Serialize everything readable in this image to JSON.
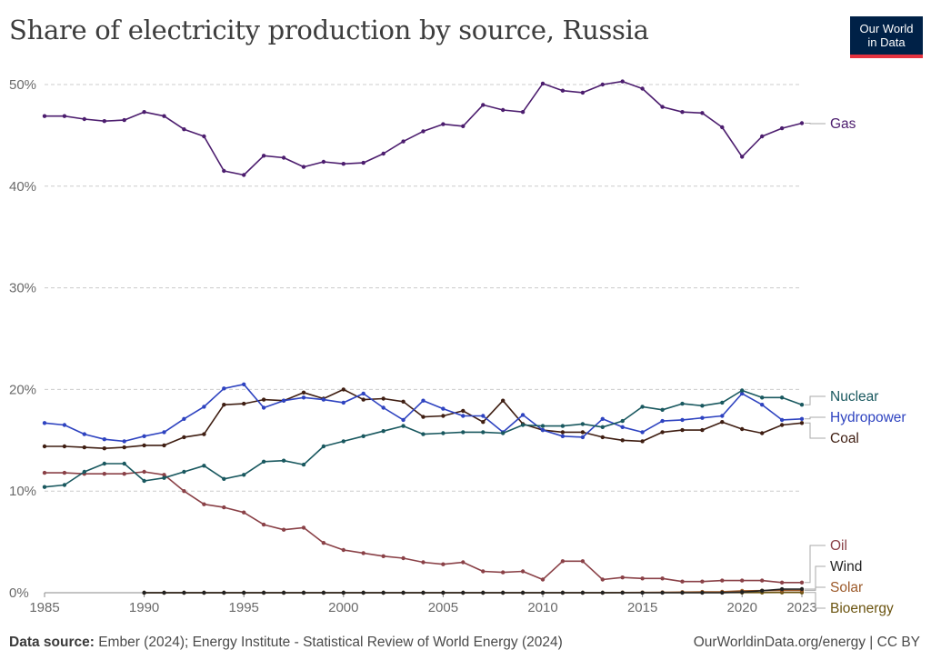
{
  "title": "Share of electricity production by source, Russia",
  "logo": {
    "line1": "Our World",
    "line2": "in Data"
  },
  "footer": {
    "source_label": "Data source:",
    "source_text": "Ember (2024); Energy Institute - Statistical Review of World Energy (2024)",
    "credit": "OurWorldinData.org/energy | CC BY"
  },
  "colors": {
    "gas": "#4c1d6e",
    "nuclear": "#19585f",
    "hydropower": "#2e43c0",
    "coal": "#3f1e12",
    "oil": "#8a4147",
    "wind": "#222222",
    "solar": "#9c5a2a",
    "bioenergy": "#6b5410",
    "grid": "#cccccc",
    "tick": "#6a6a6a"
  },
  "chart_data": {
    "type": "line",
    "title": "Share of electricity production by source, Russia",
    "xlim": [
      1985,
      2023
    ],
    "ylim": [
      0,
      50
    ],
    "y_ticks": [
      0,
      10,
      20,
      30,
      40,
      50
    ],
    "y_tick_labels": [
      "0%",
      "10%",
      "20%",
      "30%",
      "40%",
      "50%"
    ],
    "x_ticks": [
      1985,
      1990,
      1995,
      2000,
      2005,
      2010,
      2015,
      2020,
      2023
    ],
    "x_tick_labels": [
      "1985",
      "1990",
      "1995",
      "2000",
      "2005",
      "2010",
      "2015",
      "2020",
      "2023"
    ],
    "grid": "horizontal dashed",
    "legend": "right end labels",
    "series": [
      {
        "name": "Gas",
        "key": "gas",
        "start": 1985,
        "values": [
          46.9,
          46.9,
          46.6,
          46.4,
          46.5,
          47.3,
          46.9,
          45.6,
          44.9,
          41.5,
          41.1,
          43.0,
          42.8,
          41.9,
          42.4,
          42.2,
          42.3,
          43.2,
          44.4,
          45.4,
          46.1,
          45.9,
          48.0,
          47.5,
          47.3,
          50.1,
          49.4,
          49.2,
          50.0,
          50.3,
          49.6,
          47.8,
          47.3,
          47.2,
          45.8,
          42.9,
          44.9,
          45.7,
          46.2
        ]
      },
      {
        "name": "Nuclear",
        "key": "nuclear",
        "start": 1985,
        "values": [
          10.4,
          10.6,
          11.9,
          12.7,
          12.7,
          11.0,
          11.3,
          11.9,
          12.5,
          11.2,
          11.6,
          12.9,
          13.0,
          12.6,
          14.4,
          14.9,
          15.4,
          15.9,
          16.4,
          15.6,
          15.7,
          15.8,
          15.8,
          15.7,
          16.5,
          16.4,
          16.4,
          16.6,
          16.3,
          16.9,
          18.3,
          18.0,
          18.6,
          18.4,
          18.7,
          19.9,
          19.2,
          19.2,
          18.5
        ]
      },
      {
        "name": "Hydropower",
        "key": "hydropower",
        "start": 1985,
        "values": [
          16.7,
          16.5,
          15.6,
          15.1,
          14.9,
          15.4,
          15.8,
          17.1,
          18.3,
          20.1,
          20.5,
          18.2,
          18.9,
          19.2,
          19.0,
          18.7,
          19.6,
          18.2,
          17.0,
          18.9,
          18.1,
          17.4,
          17.4,
          15.8,
          17.5,
          16.0,
          15.4,
          15.3,
          17.1,
          16.3,
          15.8,
          16.9,
          17.0,
          17.2,
          17.4,
          19.6,
          18.5,
          17.0,
          17.1
        ]
      },
      {
        "name": "Coal",
        "key": "coal",
        "start": 1985,
        "values": [
          14.4,
          14.4,
          14.3,
          14.2,
          14.3,
          14.5,
          14.5,
          15.3,
          15.6,
          18.5,
          18.6,
          19.0,
          18.9,
          19.7,
          19.1,
          20.0,
          19.0,
          19.1,
          18.8,
          17.3,
          17.4,
          17.9,
          16.8,
          18.9,
          16.6,
          16.0,
          15.8,
          15.8,
          15.3,
          15.0,
          14.9,
          15.8,
          16.0,
          16.0,
          16.8,
          16.1,
          15.7,
          16.5,
          16.7
        ]
      },
      {
        "name": "Oil",
        "key": "oil",
        "start": 1985,
        "values": [
          11.8,
          11.8,
          11.7,
          11.7,
          11.7,
          11.9,
          11.6,
          10.0,
          8.7,
          8.4,
          7.9,
          6.7,
          6.2,
          6.4,
          4.9,
          4.2,
          3.9,
          3.6,
          3.4,
          3.0,
          2.8,
          3.0,
          2.1,
          2.0,
          2.1,
          1.3,
          3.1,
          3.1,
          1.3,
          1.5,
          1.4,
          1.4,
          1.1,
          1.1,
          1.2,
          1.2,
          1.2,
          1.0,
          1.0
        ]
      },
      {
        "name": "Wind",
        "key": "wind",
        "start": 1990,
        "values": [
          0,
          0,
          0,
          0,
          0,
          0,
          0,
          0,
          0,
          0,
          0,
          0,
          0,
          0,
          0,
          0,
          0,
          0,
          0,
          0,
          0,
          0,
          0,
          0,
          0,
          0,
          0,
          0,
          0,
          0.01,
          0.06,
          0.2,
          0.35,
          0.36
        ]
      },
      {
        "name": "Solar",
        "key": "solar",
        "start": 1990,
        "values": [
          0,
          0,
          0,
          0,
          0,
          0,
          0,
          0,
          0,
          0,
          0,
          0,
          0,
          0,
          0,
          0,
          0,
          0,
          0,
          0,
          0,
          0,
          0,
          0,
          0.02,
          0.03,
          0.04,
          0.06,
          0.08,
          0.1,
          0.19,
          0.21,
          0.22,
          0.23
        ]
      },
      {
        "name": "Bioenergy",
        "key": "bioenergy",
        "start": 1990,
        "values": [
          0,
          0,
          0,
          0,
          0,
          0,
          0,
          0,
          0,
          0,
          0,
          0,
          0,
          0,
          0,
          0,
          0,
          0,
          0,
          0,
          0,
          0,
          0,
          0,
          0.02,
          0.02,
          0.02,
          0.02,
          0.02,
          0.02,
          0.02,
          0.02,
          0.03,
          0.03
        ]
      }
    ]
  }
}
